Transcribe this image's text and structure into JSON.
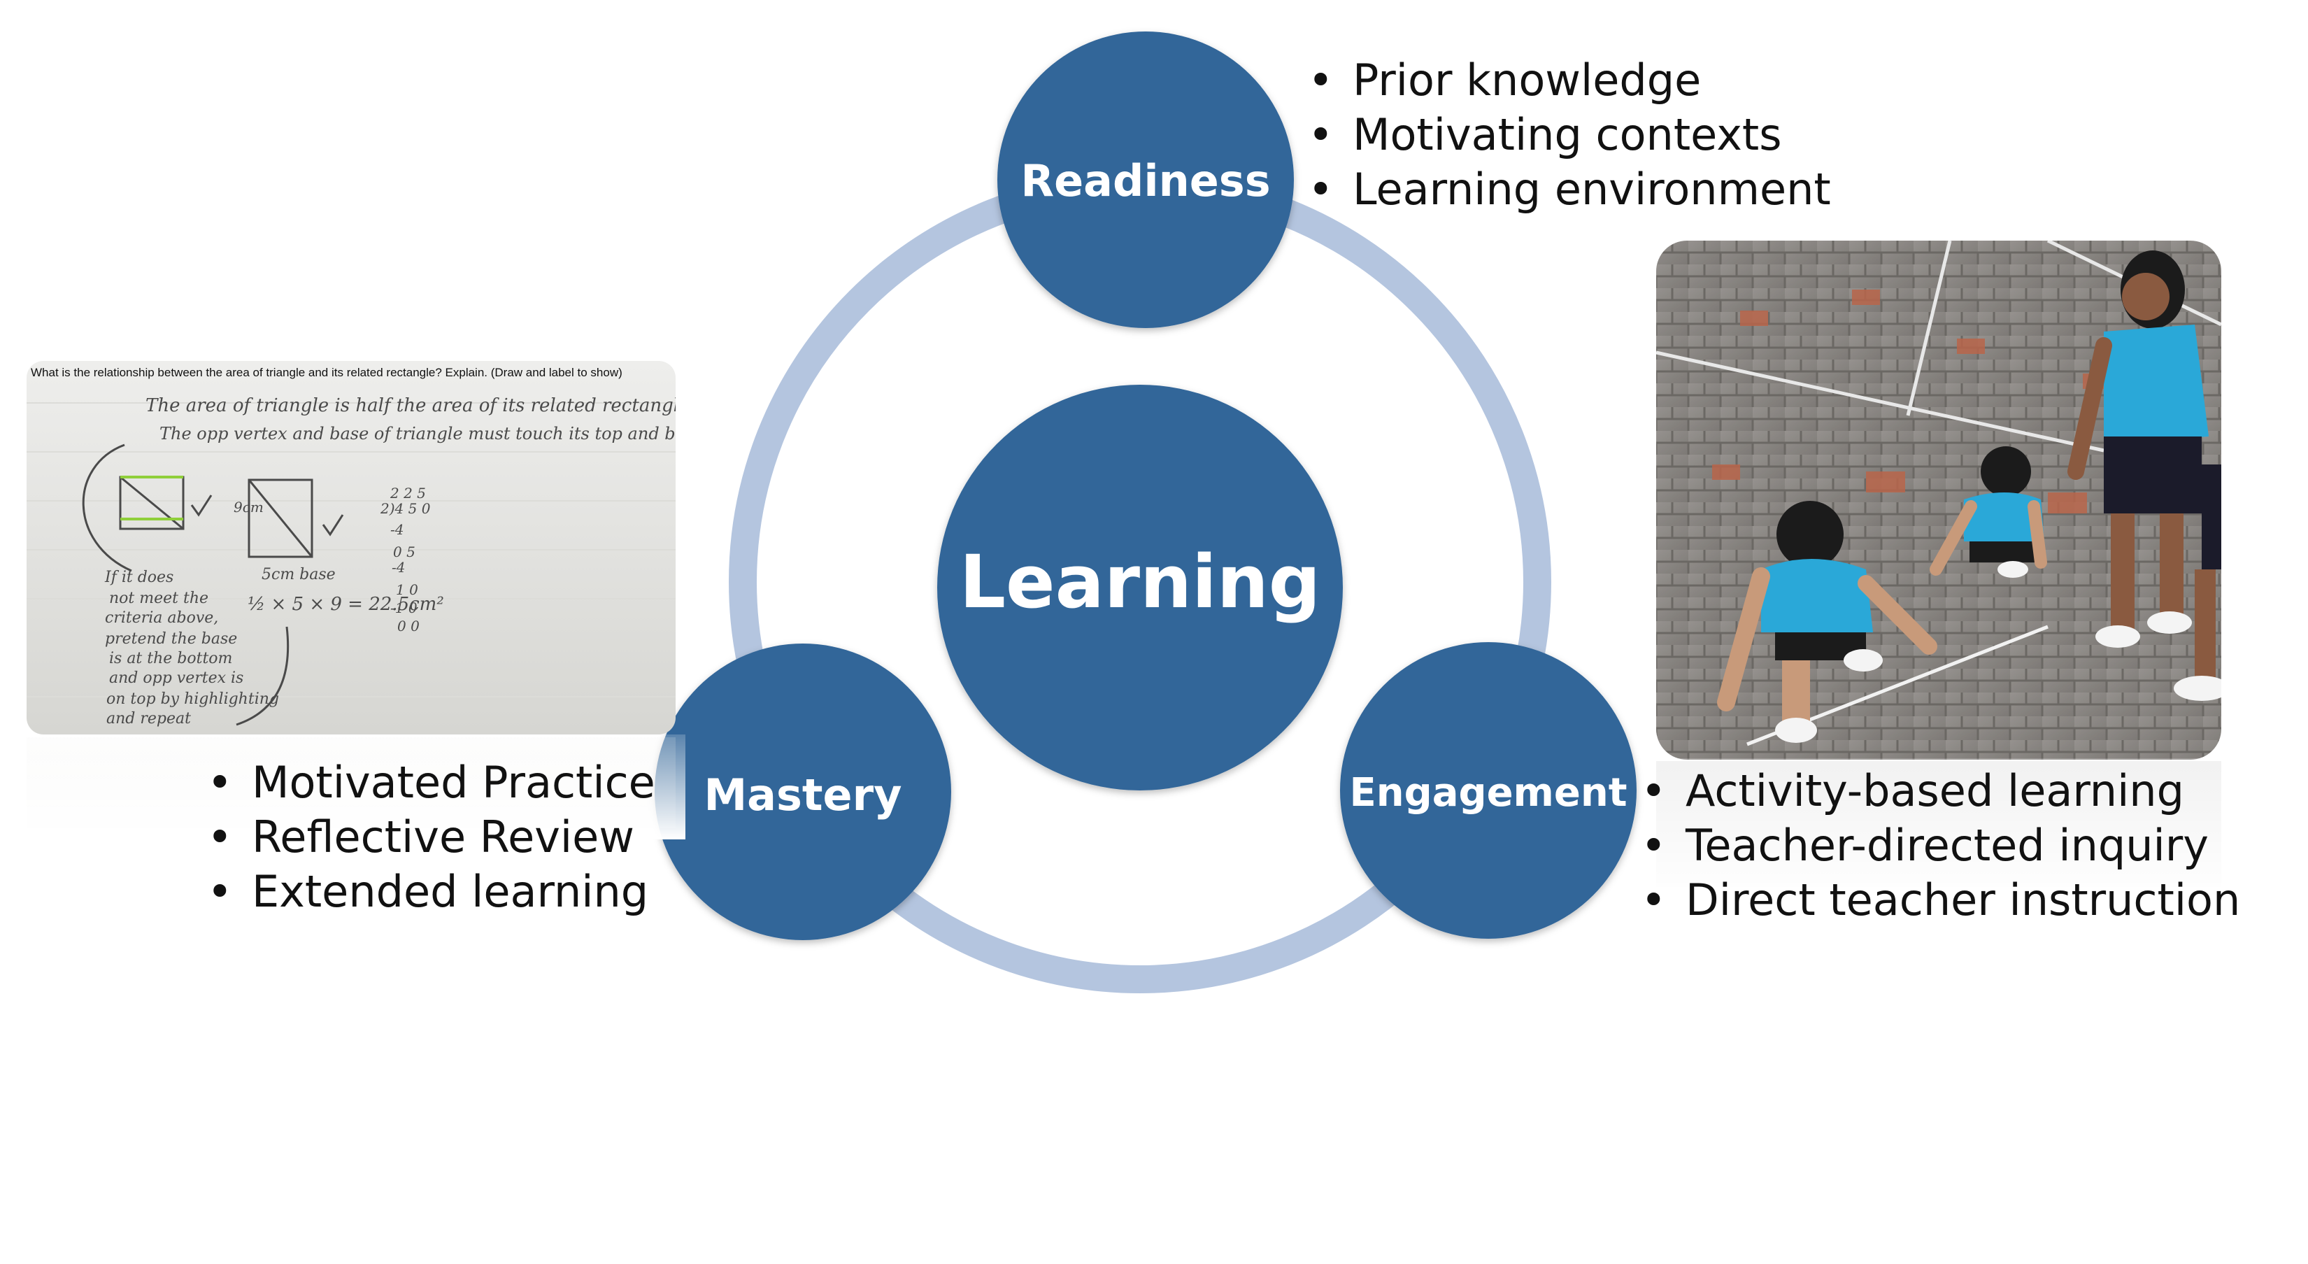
{
  "center": {
    "label": "Learning"
  },
  "nodes": {
    "readiness": {
      "label": "Readiness",
      "bullets": [
        "Prior knowledge",
        "Motivating contexts",
        "Learning environment"
      ]
    },
    "engagement": {
      "label": "Engagement",
      "bullets": [
        "Activity-based learning",
        "Teacher-directed inquiry",
        "Direct teacher instruction"
      ]
    },
    "mastery": {
      "label": "Mastery",
      "bullets": [
        "Motivated Practice",
        "Reflective Review",
        "Extended learning"
      ]
    }
  },
  "worksheet": {
    "question": "What is the relationship between the area of triangle and its related rectangle? Explain. (Draw and label to show)",
    "answer_line1": "The area of triangle is half the area of its related rectangle",
    "answer_line2": "The opp vertex and base of triangle must touch its top and bottom.",
    "note": [
      "If it does",
      "not meet the",
      "criteria above,",
      "pretend the base",
      "is at the bottom",
      "and opp vertex is",
      "on top by highlighting",
      "and repeat"
    ],
    "formula": "½ × 5 × 9 = 22.5cm²",
    "dims": "5cm base",
    "height_label": "9cm",
    "division": [
      "2 2 5",
      "2)4 5 0",
      "-4",
      "0 5",
      "-4",
      "1 0",
      "-1 0",
      "0 0"
    ]
  },
  "colors": {
    "circle_fill": "#336699",
    "ring": "#b4c5df",
    "circle_text": "#ffffff",
    "pencil": "#4a4a4a"
  }
}
